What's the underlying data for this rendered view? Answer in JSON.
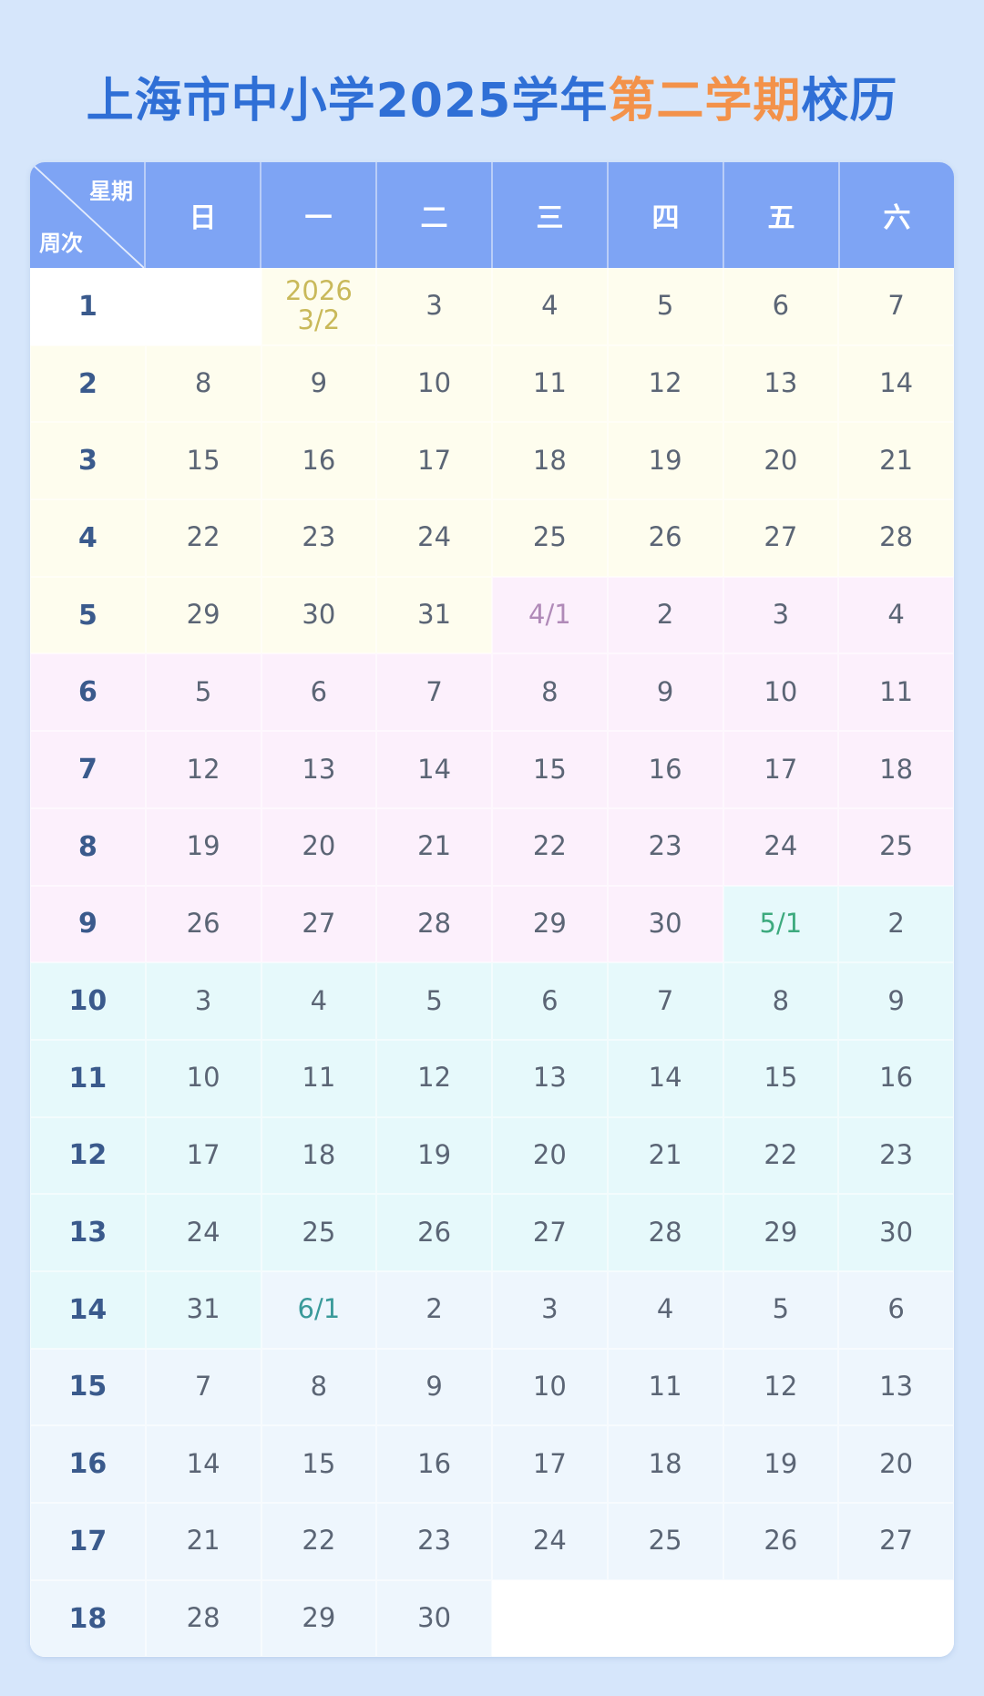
{
  "title": {
    "part1": "上海市中小学2025学年",
    "highlight": "第二学期",
    "part2": "校历"
  },
  "header": {
    "corner_top": "星期",
    "corner_bottom": "周次",
    "days": [
      "日",
      "一",
      "二",
      "三",
      "四",
      "五",
      "六"
    ]
  },
  "colors": {
    "header_bg": "#7ea4f4",
    "title": "#2f6fd6",
    "highlight": "#f3924a",
    "month_bg": {
      "3": "#fefdee",
      "4": "#fcf0fc",
      "5": "#e6f9fb",
      "6": "#eef6fd"
    },
    "month_start_text": {
      "3": "#c9b95a",
      "4": "#b08ab8",
      "5": "#3daa7e",
      "6": "#3a9a9a"
    }
  },
  "weeks": [
    {
      "week": "1",
      "days": [
        "",
        "2026\n3/2",
        "3",
        "4",
        "5",
        "6",
        "7"
      ]
    },
    {
      "week": "2",
      "days": [
        "8",
        "9",
        "10",
        "11",
        "12",
        "13",
        "14"
      ]
    },
    {
      "week": "3",
      "days": [
        "15",
        "16",
        "17",
        "18",
        "19",
        "20",
        "21"
      ]
    },
    {
      "week": "4",
      "days": [
        "22",
        "23",
        "24",
        "25",
        "26",
        "27",
        "28"
      ]
    },
    {
      "week": "5",
      "days": [
        "29",
        "30",
        "31",
        "4/1",
        "2",
        "3",
        "4"
      ]
    },
    {
      "week": "6",
      "days": [
        "5",
        "6",
        "7",
        "8",
        "9",
        "10",
        "11"
      ]
    },
    {
      "week": "7",
      "days": [
        "12",
        "13",
        "14",
        "15",
        "16",
        "17",
        "18"
      ]
    },
    {
      "week": "8",
      "days": [
        "19",
        "20",
        "21",
        "22",
        "23",
        "24",
        "25"
      ]
    },
    {
      "week": "9",
      "days": [
        "26",
        "27",
        "28",
        "29",
        "30",
        "5/1",
        "2"
      ]
    },
    {
      "week": "10",
      "days": [
        "3",
        "4",
        "5",
        "6",
        "7",
        "8",
        "9"
      ]
    },
    {
      "week": "11",
      "days": [
        "10",
        "11",
        "12",
        "13",
        "14",
        "15",
        "16"
      ]
    },
    {
      "week": "12",
      "days": [
        "17",
        "18",
        "19",
        "20",
        "21",
        "22",
        "23"
      ]
    },
    {
      "week": "13",
      "days": [
        "24",
        "25",
        "26",
        "27",
        "28",
        "29",
        "30"
      ]
    },
    {
      "week": "14",
      "days": [
        "31",
        "6/1",
        "2",
        "3",
        "4",
        "5",
        "6"
      ]
    },
    {
      "week": "15",
      "days": [
        "7",
        "8",
        "9",
        "10",
        "11",
        "12",
        "13"
      ]
    },
    {
      "week": "16",
      "days": [
        "14",
        "15",
        "16",
        "17",
        "18",
        "19",
        "20"
      ]
    },
    {
      "week": "17",
      "days": [
        "21",
        "22",
        "23",
        "24",
        "25",
        "26",
        "27"
      ]
    },
    {
      "week": "18",
      "days": [
        "28",
        "29",
        "30",
        "",
        "",
        "",
        ""
      ]
    }
  ]
}
